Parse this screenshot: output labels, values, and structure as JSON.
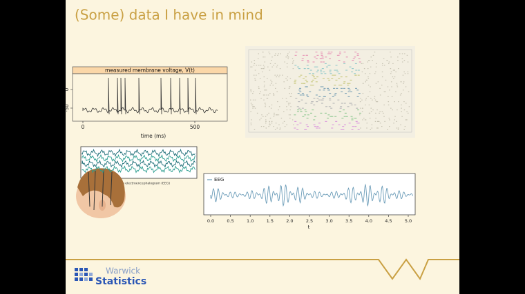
{
  "title": "(Some) data I have in mind",
  "voltage_plot": {
    "title": "measured membrane voltage, V(t)",
    "yticks": [
      0,
      -50
    ],
    "xticks": [
      0,
      500
    ],
    "xlabel": "time (ms)"
  },
  "eeg_image": {
    "caption": "An electroencephalogram (EEG)"
  },
  "eeg_plot": {
    "legend": "EEG",
    "xticks": [
      {
        "value": 0,
        "label": "0.0"
      },
      {
        "value": 0.5,
        "label": "0.5"
      },
      {
        "value": 1,
        "label": "1.0"
      },
      {
        "value": 1.5,
        "label": "1.5"
      },
      {
        "value": 2,
        "label": "2.0"
      },
      {
        "value": 2.5,
        "label": "2.5"
      },
      {
        "value": 3,
        "label": "3.0"
      },
      {
        "value": 3.5,
        "label": "3.5"
      },
      {
        "value": 4,
        "label": "4.0"
      },
      {
        "value": 4.5,
        "label": "4.5"
      },
      {
        "value": 5,
        "label": "5.0"
      }
    ],
    "xlabel": "t"
  },
  "logo": {
    "line1": "Warwick",
    "line2": "Statistics"
  }
}
